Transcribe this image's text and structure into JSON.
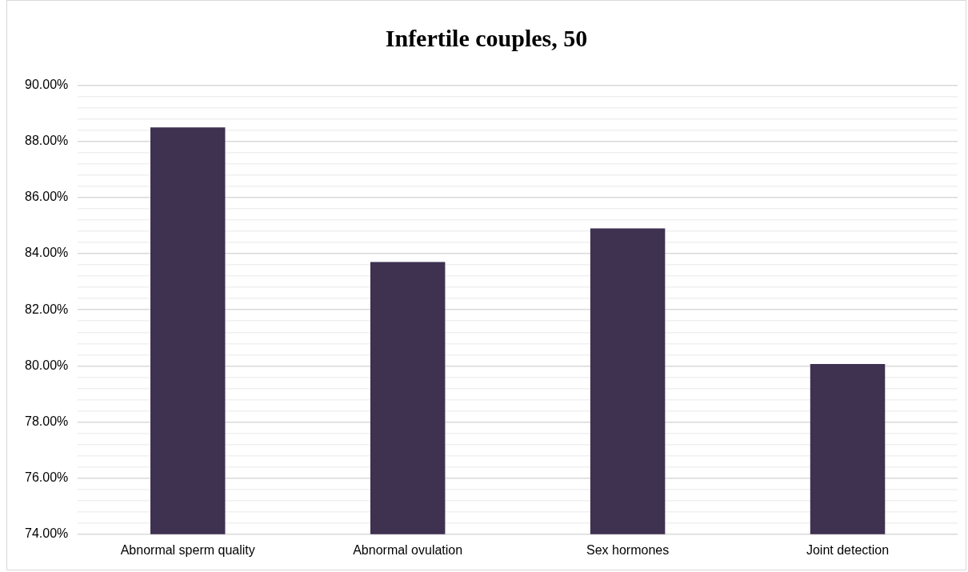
{
  "chart_data": {
    "type": "bar",
    "title": "Infertile couples, 50",
    "categories": [
      "Abnormal sperm quality",
      "Abnormal ovulation",
      "Sex hormones",
      "Joint detection"
    ],
    "values": [
      88.5,
      83.7,
      84.9,
      80.07
    ],
    "color": "#3f3150",
    "ylim": [
      74,
      90
    ],
    "yticks": [
      {
        "value": 74,
        "label": "74.00%"
      },
      {
        "value": 74.4,
        "label": null
      },
      {
        "value": 74.8,
        "label": null
      },
      {
        "value": 75.2,
        "label": null
      },
      {
        "value": 75.6,
        "label": null
      },
      {
        "value": 76,
        "label": "76.00%"
      },
      {
        "value": 76.4,
        "label": null
      },
      {
        "value": 76.8,
        "label": null
      },
      {
        "value": 77.2,
        "label": null
      },
      {
        "value": 77.6,
        "label": null
      },
      {
        "value": 78,
        "label": "78.00%"
      },
      {
        "value": 78.4,
        "label": null
      },
      {
        "value": 78.8,
        "label": null
      },
      {
        "value": 79.2,
        "label": null
      },
      {
        "value": 79.6,
        "label": null
      },
      {
        "value": 80,
        "label": "80.00%"
      },
      {
        "value": 80.4,
        "label": null
      },
      {
        "value": 80.8,
        "label": null
      },
      {
        "value": 81.2,
        "label": null
      },
      {
        "value": 81.6,
        "label": null
      },
      {
        "value": 82,
        "label": "82.00%"
      },
      {
        "value": 82.4,
        "label": null
      },
      {
        "value": 82.8,
        "label": null
      },
      {
        "value": 83.2,
        "label": null
      },
      {
        "value": 83.6,
        "label": null
      },
      {
        "value": 84,
        "label": "84.00%"
      },
      {
        "value": 84.4,
        "label": null
      },
      {
        "value": 84.8,
        "label": null
      },
      {
        "value": 85.2,
        "label": null
      },
      {
        "value": 85.6,
        "label": null
      },
      {
        "value": 86,
        "label": "86.00%"
      },
      {
        "value": 86.4,
        "label": null
      },
      {
        "value": 86.8,
        "label": null
      },
      {
        "value": 87.2,
        "label": null
      },
      {
        "value": 87.6,
        "label": null
      },
      {
        "value": 88,
        "label": "88.00%"
      },
      {
        "value": 88.4,
        "label": null
      },
      {
        "value": 88.8,
        "label": null
      },
      {
        "value": 89.2,
        "label": null
      },
      {
        "value": 89.6,
        "label": null
      },
      {
        "value": 90,
        "label": "90.00%"
      }
    ],
    "grid": "y",
    "legend": false
  }
}
